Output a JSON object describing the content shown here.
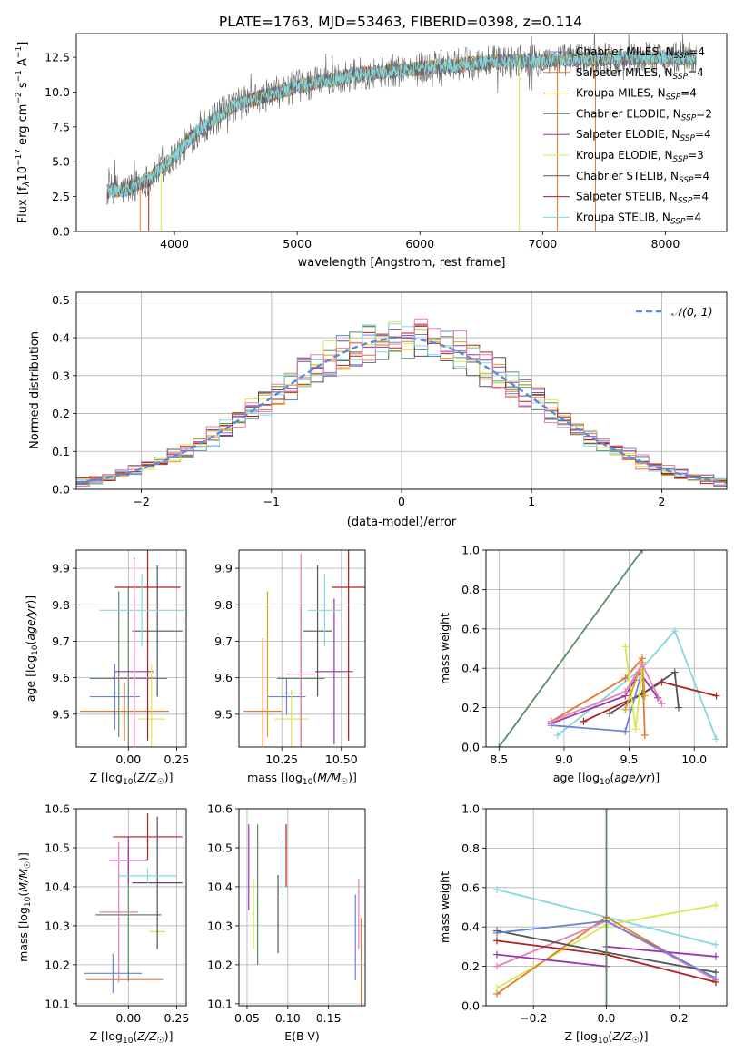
{
  "figure_title": "PLATE=1763, MJD=53463, FIBERID=0398, z=0.114",
  "colors": {
    "chabrier_miles": "#6b82d6",
    "salpeter_miles": "#e07a2f",
    "kroupa_miles": "#d9a21a",
    "chabrier_elodie": "#5b8c68",
    "salpeter_elodie": "#9a35b0",
    "kroupa_elodie": "#d8e84a",
    "chabrier_stelib": "#555555",
    "salpeter_stelib": "#b21f1f",
    "kroupa_stelib": "#83d9dd",
    "pink": "#e67fb3",
    "normal_curve": "#5b8dd6"
  },
  "chart_data": [
    {
      "id": "spectrum",
      "type": "line",
      "title": "PLATE=1763, MJD=53463, FIBERID=0398, z=0.114",
      "xlabel": "wavelength [Angstrom, rest frame]",
      "ylabel": "Flux [f_λ 10^-17 erg cm^-2 s^-1 A^-1]",
      "xlim": [
        3200,
        8500
      ],
      "ylim": [
        0,
        14.2
      ],
      "xticks": [
        "4000",
        "5000",
        "6000",
        "7000",
        "8000"
      ],
      "yticks": [
        "0.0",
        "2.5",
        "5.0",
        "7.5",
        "10.0",
        "12.5"
      ],
      "legend_position": "right",
      "legend": [
        "Chabrier MILES, N_SSP=4",
        "Salpeter MILES, N_SSP=4",
        "Kroupa MILES, N_SSP=4",
        "Chabrier ELODIE, N_SSP=2",
        "Salpeter ELODIE, N_SSP=4",
        "Kroupa ELODIE, N_SSP=3",
        "Chabrier STELIB, N_SSP=4",
        "Salpeter STELIB, N_SSP=4",
        "Kroupa STELIB, N_SSP=4"
      ],
      "continuum": {
        "x": [
          3450,
          3600,
          3800,
          4000,
          4200,
          4500,
          5000,
          5500,
          6000,
          6500,
          7000,
          7500,
          8000,
          8250
        ],
        "y": [
          2.9,
          3.0,
          3.8,
          5.4,
          7.3,
          9.1,
          10.4,
          11.3,
          11.7,
          12.1,
          12.3,
          12.4,
          12.5,
          12.4
        ]
      },
      "spectral_range": [
        3450,
        8250
      ]
    },
    {
      "id": "residuals",
      "type": "bar",
      "xlabel": "(data-model)/error",
      "ylabel": "Normed distribution",
      "xlim": [
        -2.5,
        2.5
      ],
      "ylim": [
        0,
        0.52
      ],
      "xticks": [
        "−2",
        "−1",
        "0",
        "1",
        "2"
      ],
      "yticks": [
        "0.0",
        "0.1",
        "0.2",
        "0.3",
        "0.4",
        "0.5"
      ],
      "legend": [
        "𝒩(0, 1)"
      ],
      "legend_position": "top-right",
      "bin_width": 0.1
    },
    {
      "id": "age_vs_Z",
      "type": "scatter",
      "xlabel": "Z [log10(Z/Z☉)]",
      "ylabel": "age [log10(age/yr)]",
      "xlim": [
        -0.27,
        0.3
      ],
      "ylim": [
        9.41,
        9.95
      ],
      "xticks": [
        "0.00",
        "0.25"
      ],
      "yticks": [
        "9.5",
        "9.6",
        "9.7",
        "9.8",
        "9.9"
      ],
      "points": [
        {
          "x": -0.07,
          "y": 9.548,
          "xerr": 0.13,
          "yerr": 0.09,
          "c": "chabrier_miles"
        },
        {
          "x": -0.02,
          "y": 9.508,
          "xerr": 0.23,
          "yerr": 0.08,
          "c": "salpeter_miles"
        },
        {
          "x": -0.05,
          "y": 9.637,
          "xerr": 0.0,
          "yerr": 0.2,
          "c": "chabrier_elodie"
        },
        {
          "x": 0.0,
          "y": 9.598,
          "xerr": 0.2,
          "yerr": 0.25,
          "c": "chabrier_elodie"
        },
        {
          "x": 0.03,
          "y": 9.617,
          "xerr": 0.1,
          "yerr": 0.2,
          "c": "salpeter_elodie"
        },
        {
          "x": 0.12,
          "y": 9.487,
          "xerr": 0.07,
          "yerr": 0.15,
          "c": "kroupa_elodie"
        },
        {
          "x": 0.15,
          "y": 9.728,
          "xerr": 0.13,
          "yerr": 0.18,
          "c": "chabrier_stelib"
        },
        {
          "x": 0.1,
          "y": 9.848,
          "xerr": 0.17,
          "yerr": 0.42,
          "c": "salpeter_stelib"
        },
        {
          "x": 0.07,
          "y": 9.785,
          "xerr": 0.22,
          "yerr": 0.1,
          "c": "kroupa_stelib"
        },
        {
          "x": 0.03,
          "y": 9.6,
          "xerr": 0.12,
          "yerr": 0.33,
          "c": "pink"
        }
      ]
    },
    {
      "id": "age_vs_mass",
      "type": "scatter",
      "xlabel": "mass [log10(M/M☉)]",
      "ylabel": "",
      "xlim": [
        10.07,
        10.6
      ],
      "ylim": [
        9.41,
        9.95
      ],
      "xticks": [
        "10.25",
        "10.50"
      ],
      "yticks": [
        "9.5",
        "9.6",
        "9.7",
        "9.8",
        "9.9"
      ],
      "points": [
        {
          "x": 10.27,
          "y": 9.548,
          "xerr": 0.08,
          "yerr": 0.05,
          "c": "chabrier_miles"
        },
        {
          "x": 10.17,
          "y": 9.508,
          "xerr": 0.08,
          "yerr": 0.2,
          "c": "salpeter_miles"
        },
        {
          "x": 10.19,
          "y": 9.637,
          "xerr": 0.0,
          "yerr": 0.2,
          "c": "kroupa_miles"
        },
        {
          "x": 10.33,
          "y": 9.598,
          "xerr": 0.1,
          "yerr": 0.2,
          "c": "chabrier_elodie"
        },
        {
          "x": 10.47,
          "y": 9.617,
          "xerr": 0.08,
          "yerr": 0.2,
          "c": "salpeter_elodie"
        },
        {
          "x": 10.29,
          "y": 9.487,
          "xerr": 0.07,
          "yerr": 0.08,
          "c": "kroupa_elodie"
        },
        {
          "x": 10.4,
          "y": 9.728,
          "xerr": 0.06,
          "yerr": 0.18,
          "c": "chabrier_stelib"
        },
        {
          "x": 10.53,
          "y": 9.848,
          "xerr": 0.07,
          "yerr": 0.42,
          "c": "salpeter_stelib"
        },
        {
          "x": 10.43,
          "y": 9.785,
          "xerr": 0.07,
          "yerr": 0.1,
          "c": "kroupa_stelib"
        },
        {
          "x": 10.33,
          "y": 9.61,
          "xerr": 0.06,
          "yerr": 0.33,
          "c": "pink"
        }
      ]
    },
    {
      "id": "weight_vs_age",
      "type": "line",
      "xlabel": "age [log10(age/yr)]",
      "ylabel": "mass weight",
      "xlim": [
        8.4,
        10.25
      ],
      "ylim": [
        0,
        1
      ],
      "xticks": [
        "8.5",
        "9.0",
        "9.5",
        "10.0"
      ],
      "yticks": [
        "0.0",
        "0.2",
        "0.4",
        "0.6",
        "0.8",
        "1.0"
      ],
      "series": [
        {
          "c": "chabrier_elodie",
          "x": [
            8.5,
            9.6
          ],
          "y": [
            0.0,
            1.0
          ]
        },
        {
          "c": "kroupa_stelib",
          "x": [
            8.95,
            9.6,
            9.85,
            10.17
          ],
          "y": [
            0.06,
            0.4,
            0.59,
            0.04
          ]
        },
        {
          "c": "salpeter_stelib",
          "x": [
            9.15,
            9.6,
            9.75,
            10.17
          ],
          "y": [
            0.13,
            0.27,
            0.33,
            0.26
          ]
        },
        {
          "c": "chabrier_stelib",
          "x": [
            9.35,
            9.6,
            9.85,
            9.88
          ],
          "y": [
            0.17,
            0.27,
            0.38,
            0.2
          ]
        },
        {
          "c": "salpeter_elodie",
          "x": [
            8.9,
            9.47,
            9.58,
            9.72
          ],
          "y": [
            0.12,
            0.26,
            0.38,
            0.25
          ]
        },
        {
          "c": "salpeter_miles",
          "x": [
            8.9,
            9.47,
            9.6,
            9.62
          ],
          "y": [
            0.13,
            0.35,
            0.45,
            0.06
          ]
        },
        {
          "c": "chabrier_miles",
          "x": [
            8.9,
            9.47,
            9.58
          ],
          "y": [
            0.11,
            0.08,
            0.34
          ]
        },
        {
          "c": "kroupa_elodie",
          "x": [
            9.47,
            9.55,
            9.6
          ],
          "y": [
            0.51,
            0.09,
            0.4
          ]
        },
        {
          "c": "kroupa_miles",
          "x": [
            9.47,
            9.6,
            9.62
          ],
          "y": [
            0.19,
            0.43,
            0.26
          ]
        },
        {
          "c": "pink",
          "x": [
            8.9,
            9.47,
            9.6,
            9.75
          ],
          "y": [
            0.13,
            0.28,
            0.42,
            0.22
          ]
        }
      ]
    },
    {
      "id": "mass_vs_Z",
      "type": "scatter",
      "xlabel": "Z [log10(Z/Z☉)]",
      "ylabel": "mass [log10(M/M☉)]",
      "xlim": [
        -0.27,
        0.3
      ],
      "ylim": [
        10.095,
        10.6
      ],
      "xticks": [
        "0.00",
        "0.25"
      ],
      "yticks": [
        "10.1",
        "10.2",
        "10.3",
        "10.4",
        "10.5",
        "10.6"
      ],
      "points": [
        {
          "x": -0.08,
          "y": 10.178,
          "xerr": 0.15,
          "yerr": 0.05,
          "c": "chabrier_miles"
        },
        {
          "x": -0.02,
          "y": 10.162,
          "xerr": 0.2,
          "yerr": 0.0,
          "c": "salpeter_miles"
        },
        {
          "x": 0.0,
          "y": 10.328,
          "xerr": 0.17,
          "yerr": 0.17,
          "c": "chabrier_elodie"
        },
        {
          "x": 0.0,
          "y": 10.468,
          "xerr": 0.1,
          "yerr": 0.06,
          "c": "salpeter_elodie"
        },
        {
          "x": 0.15,
          "y": 10.285,
          "xerr": 0.04,
          "yerr": 0.0,
          "c": "kroupa_elodie"
        },
        {
          "x": 0.15,
          "y": 10.41,
          "xerr": 0.13,
          "yerr": 0.17,
          "c": "chabrier_stelib"
        },
        {
          "x": 0.1,
          "y": 10.528,
          "xerr": 0.18,
          "yerr": 0.06,
          "c": "salpeter_stelib"
        },
        {
          "x": 0.1,
          "y": 10.428,
          "xerr": 0.15,
          "yerr": 0.02,
          "c": "kroupa_stelib"
        },
        {
          "x": -0.05,
          "y": 10.335,
          "xerr": 0.1,
          "yerr": 0.18,
          "c": "pink"
        }
      ]
    },
    {
      "id": "mass_vs_ebv",
      "type": "scatter",
      "xlabel": "E(B-V)",
      "ylabel": "",
      "xlim": [
        0.04,
        0.195
      ],
      "ylim": [
        10.095,
        10.6
      ],
      "xticks": [
        "0.05",
        "0.10",
        "0.15"
      ],
      "yticks": [
        "10.1",
        "10.2",
        "10.3",
        "10.4",
        "10.5",
        "10.6"
      ],
      "points": [
        {
          "x": 0.052,
          "y": 10.45,
          "xerr": 0,
          "yerr": 0.11,
          "c": "salpeter_elodie"
        },
        {
          "x": 0.058,
          "y": 10.33,
          "xerr": 0,
          "yerr": 0.09,
          "c": "kroupa_elodie"
        },
        {
          "x": 0.063,
          "y": 10.38,
          "xerr": 0,
          "yerr": 0.18,
          "c": "chabrier_elodie"
        },
        {
          "x": 0.088,
          "y": 10.33,
          "xerr": 0,
          "yerr": 0.1,
          "c": "chabrier_stelib"
        },
        {
          "x": 0.094,
          "y": 10.45,
          "xerr": 0,
          "yerr": 0.07,
          "c": "kroupa_stelib"
        },
        {
          "x": 0.098,
          "y": 10.48,
          "xerr": 0,
          "yerr": 0.08,
          "c": "salpeter_stelib"
        },
        {
          "x": 0.183,
          "y": 10.27,
          "xerr": 0,
          "yerr": 0.11,
          "c": "chabrier_miles"
        },
        {
          "x": 0.187,
          "y": 10.33,
          "xerr": 0,
          "yerr": 0.09,
          "c": "pink"
        },
        {
          "x": 0.19,
          "y": 10.18,
          "xerr": 0,
          "yerr": 0.14,
          "c": "salpeter_miles"
        }
      ]
    },
    {
      "id": "weight_vs_Z",
      "type": "line",
      "xlabel": "Z [log10(Z/Z☉)]",
      "ylabel": "mass weight",
      "xlim": [
        -0.33,
        0.33
      ],
      "ylim": [
        0,
        1
      ],
      "xticks": [
        "−0.2",
        "0.0",
        "0.2"
      ],
      "yticks": [
        "0.0",
        "0.2",
        "0.4",
        "0.6",
        "0.8",
        "1.0"
      ],
      "series": [
        {
          "c": "kroupa_stelib",
          "x": [
            -0.3,
            0.0,
            0.3
          ],
          "y": [
            0.59,
            0.45,
            0.31
          ]
        },
        {
          "c": "kroupa_elodie",
          "x": [
            -0.3,
            0.0,
            0.3
          ],
          "y": [
            0.09,
            0.41,
            0.51
          ]
        },
        {
          "c": "salpeter_miles",
          "x": [
            -0.3,
            0.0,
            0.3
          ],
          "y": [
            0.06,
            0.45,
            0.13
          ]
        },
        {
          "c": "pink",
          "x": [
            -0.3,
            0.0,
            0.3
          ],
          "y": [
            0.2,
            0.43,
            0.13
          ]
        },
        {
          "c": "chabrier_stelib",
          "x": [
            -0.3,
            0.0,
            0.3
          ],
          "y": [
            0.38,
            0.27,
            0.17
          ]
        },
        {
          "c": "salpeter_stelib",
          "x": [
            -0.3,
            0.0,
            0.3
          ],
          "y": [
            0.33,
            0.26,
            0.12
          ]
        },
        {
          "c": "salpeter_elodie",
          "x": [
            -0.3,
            0.0,
            0.0,
            0.3
          ],
          "y": [
            0.26,
            0.2,
            0.3,
            0.25
          ]
        },
        {
          "c": "chabrier_miles",
          "x": [
            -0.3,
            0.0,
            0.3
          ],
          "y": [
            0.37,
            0.43,
            0.14
          ]
        },
        {
          "c": "chabrier_elodie",
          "x": [
            0.0,
            0.0
          ],
          "y": [
            0.0,
            1.0
          ]
        }
      ]
    }
  ]
}
